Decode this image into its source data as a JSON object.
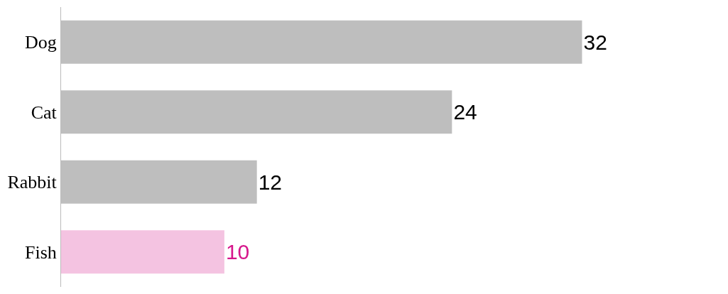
{
  "chart_data": {
    "type": "bar",
    "orientation": "horizontal",
    "categories": [
      "Dog",
      "Cat",
      "Rabbit",
      "Fish"
    ],
    "values": [
      32,
      24,
      12,
      10
    ],
    "colors": [
      "#000000",
      "#000000",
      "#000000",
      "#d6168b"
    ],
    "data_labels": true
  }
}
